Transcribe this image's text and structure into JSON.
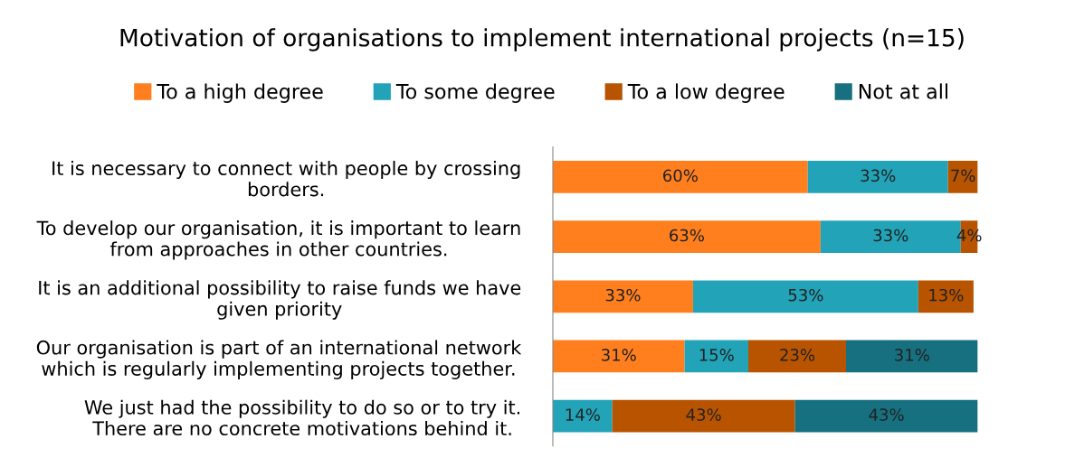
{
  "chart_data": {
    "type": "bar",
    "orientation": "horizontal",
    "stacked": true,
    "title": "Motivation of organisations to implement international projects (n=15)",
    "categories": [
      "It is necessary to connect with people by crossing\nborders.",
      "To develop our organisation, it is important to learn\nfrom approaches in other countries.",
      "It is an additional possibility to raise funds we have\ngiven priority",
      "Our organisation is part of an international network\nwhich is regularly implementing projects together.",
      "We just had the possibility to do so or to try it.\nThere are no concrete motivations behind it."
    ],
    "series": [
      {
        "name": "To a high degree",
        "color": "#ff7f1e",
        "values": [
          60,
          63,
          33,
          31,
          null
        ],
        "value_labels": [
          "60%",
          "63%",
          "33%",
          "31%",
          null
        ]
      },
      {
        "name": "To some degree",
        "color": "#22a3b8",
        "values": [
          33,
          33,
          53,
          15,
          14
        ],
        "value_labels": [
          "33%",
          "33%",
          "53%",
          "15%",
          "14%"
        ]
      },
      {
        "name": "To a low degree",
        "color": "#b85400",
        "values": [
          7,
          4,
          13,
          23,
          43
        ],
        "value_labels": [
          "7%",
          "4%",
          "13%",
          "23%",
          "43%"
        ]
      },
      {
        "name": "Not at all",
        "color": "#17707f",
        "values": [
          null,
          null,
          null,
          31,
          43
        ],
        "value_labels": [
          null,
          null,
          null,
          "31%",
          "43%"
        ]
      }
    ],
    "legend": "top",
    "grid": false,
    "tick_labels": "y"
  }
}
